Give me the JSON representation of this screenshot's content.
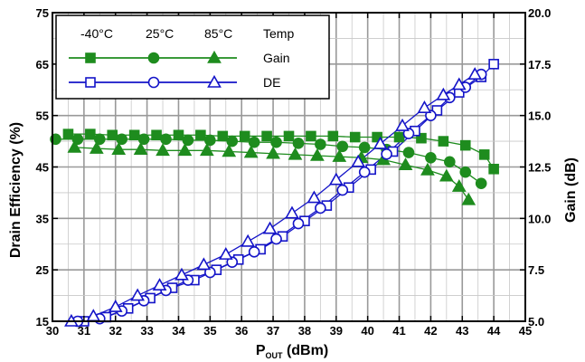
{
  "chart_data": {
    "type": "line",
    "xlabel_main": "P",
    "xlabel_sub": "OUT",
    "xlabel_unit": " (dBm)",
    "ylabel": "Drain Efficiency (%)",
    "y2label": "Gain (dB)",
    "xlim": [
      30,
      45
    ],
    "ylim": [
      15,
      75
    ],
    "y2lim": [
      5.0,
      20.0
    ],
    "x_ticks": [
      "30",
      "31",
      "32",
      "33",
      "34",
      "35",
      "36",
      "37",
      "38",
      "39",
      "40",
      "41",
      "42",
      "43",
      "44",
      "45"
    ],
    "y_ticks": [
      "15",
      "25",
      "35",
      "45",
      "55",
      "65",
      "75"
    ],
    "y2_ticks": [
      "5.0",
      "7.5",
      "10.0",
      "12.5",
      "15.0",
      "17.5",
      "20.0"
    ],
    "grid": true,
    "colors": {
      "gain": "#1e8c1e",
      "de": "#1414c8"
    },
    "legend": {
      "position": "top-left",
      "headers": [
        "-40°C",
        "25°C",
        "85°C",
        "Temp"
      ],
      "rows": [
        "Gain",
        "DE"
      ]
    },
    "series": [
      {
        "name": "-40°C Gain",
        "axis": "right",
        "marker": "square",
        "filled": true,
        "color": "#1e8c1e",
        "x": [
          30.5,
          31.2,
          31.9,
          32.6,
          33.3,
          34.0,
          34.7,
          35.4,
          36.1,
          36.8,
          37.5,
          38.2,
          38.9,
          39.6,
          40.3,
          41.0,
          41.7,
          42.4,
          43.1,
          43.7,
          44.0
        ],
        "y": [
          14.1,
          14.1,
          14.05,
          14.05,
          14.05,
          14.05,
          14.05,
          14.0,
          14.0,
          14.0,
          14.0,
          14.0,
          14.0,
          13.95,
          13.95,
          13.95,
          13.9,
          13.75,
          13.55,
          13.1,
          12.4
        ]
      },
      {
        "name": "25°C Gain",
        "axis": "right",
        "marker": "circle",
        "filled": true,
        "color": "#1e8c1e",
        "x": [
          30.1,
          30.8,
          31.5,
          32.2,
          32.9,
          33.6,
          34.3,
          35.0,
          35.7,
          36.4,
          37.1,
          37.8,
          38.5,
          39.2,
          39.9,
          40.6,
          41.3,
          42.0,
          42.6,
          43.1,
          43.6
        ],
        "y": [
          13.85,
          13.85,
          13.85,
          13.85,
          13.85,
          13.85,
          13.8,
          13.8,
          13.75,
          13.7,
          13.7,
          13.65,
          13.6,
          13.5,
          13.45,
          13.35,
          13.2,
          12.95,
          12.75,
          12.25,
          11.7
        ]
      },
      {
        "name": "85°C Gain",
        "axis": "right",
        "marker": "triangle",
        "filled": true,
        "color": "#1e8c1e",
        "x": [
          30.7,
          31.4,
          32.1,
          32.8,
          33.5,
          34.2,
          34.9,
          35.6,
          36.3,
          37.0,
          37.7,
          38.4,
          39.1,
          39.8,
          40.5,
          41.2,
          41.9,
          42.5,
          42.9,
          43.2
        ],
        "y": [
          13.45,
          13.4,
          13.35,
          13.35,
          13.3,
          13.3,
          13.3,
          13.25,
          13.2,
          13.15,
          13.1,
          13.05,
          13.0,
          12.95,
          12.85,
          12.6,
          12.35,
          12.05,
          11.55,
          10.9
        ]
      },
      {
        "name": "-40°C DE",
        "axis": "left",
        "marker": "square",
        "filled": false,
        "color": "#1414c8",
        "x": [
          31.0,
          31.7,
          32.4,
          33.1,
          33.8,
          34.5,
          35.2,
          35.9,
          36.6,
          37.3,
          38.0,
          38.7,
          39.4,
          40.1,
          40.8,
          41.5,
          42.2,
          42.9,
          43.6,
          44.0
        ],
        "y": [
          15.0,
          15.8,
          17.5,
          19.5,
          21.5,
          23.0,
          25.0,
          27.0,
          29.0,
          31.5,
          34.5,
          37.5,
          41.0,
          44.5,
          48.0,
          52.0,
          56.0,
          59.5,
          62.5,
          65.0
        ]
      },
      {
        "name": "25°C DE",
        "axis": "left",
        "marker": "circle",
        "filled": false,
        "color": "#1414c8",
        "x": [
          30.8,
          31.5,
          32.2,
          32.9,
          33.6,
          34.3,
          35.0,
          35.7,
          36.4,
          37.1,
          37.8,
          38.5,
          39.2,
          39.9,
          40.6,
          41.3,
          42.0,
          42.6,
          43.1,
          43.6
        ],
        "y": [
          15.0,
          15.5,
          17.0,
          19.0,
          21.0,
          23.0,
          24.5,
          26.5,
          28.5,
          31.0,
          34.0,
          37.0,
          40.5,
          44.0,
          47.5,
          51.5,
          55.0,
          58.5,
          60.5,
          63.0
        ]
      },
      {
        "name": "85°C DE",
        "axis": "left",
        "marker": "triangle",
        "filled": false,
        "color": "#1414c8",
        "x": [
          30.6,
          31.3,
          32.0,
          32.7,
          33.4,
          34.1,
          34.8,
          35.5,
          36.2,
          36.9,
          37.6,
          38.3,
          39.0,
          39.7,
          40.4,
          41.1,
          41.8,
          42.4,
          42.9,
          43.4
        ],
        "y": [
          15.0,
          16.0,
          17.8,
          20.0,
          22.0,
          24.0,
          26.0,
          28.0,
          30.5,
          33.0,
          36.0,
          39.0,
          42.5,
          46.0,
          49.5,
          53.0,
          56.5,
          59.0,
          61.0,
          63.0
        ]
      }
    ]
  }
}
